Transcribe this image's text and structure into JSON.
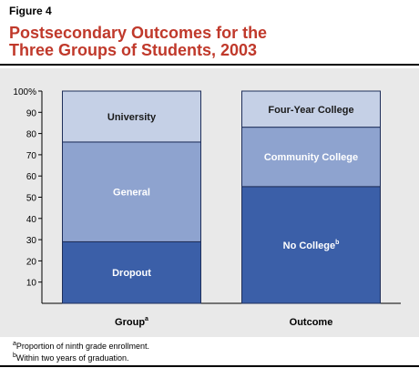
{
  "figure_label": "Figure 4",
  "title_lines": [
    "Postsecondary Outcomes for the",
    "Three Groups of Students, 2003"
  ],
  "chart_data": {
    "type": "bar",
    "stacked": true,
    "title": "Postsecondary Outcomes for the Three Groups of Students, 2003",
    "xlabel": "",
    "ylabel": "",
    "ylim": [
      0,
      100
    ],
    "yticks": [
      10,
      20,
      30,
      40,
      50,
      60,
      70,
      80,
      90,
      100
    ],
    "ytick_labels": [
      "10",
      "20",
      "30",
      "40",
      "50",
      "60",
      "70",
      "80",
      "90",
      "100%"
    ],
    "grid": false,
    "bars": [
      {
        "category": "Group",
        "footnote_mark": "a",
        "segments": [
          {
            "label": "Dropout",
            "value": 29,
            "color": "#3b5fa8",
            "text_color": "#ffffff"
          },
          {
            "label": "General",
            "value": 47,
            "color": "#8ea3cf",
            "text_color": "#ffffff"
          },
          {
            "label": "University",
            "value": 24,
            "color": "#c5d0e6",
            "text_color": "#1a1a1a"
          }
        ]
      },
      {
        "category": "Outcome",
        "footnote_mark": "",
        "segments": [
          {
            "label": "No College",
            "footnote_mark": "b",
            "value": 55,
            "color": "#3b5fa8",
            "text_color": "#ffffff"
          },
          {
            "label": "Community College",
            "value": 28,
            "color": "#8ea3cf",
            "text_color": "#ffffff"
          },
          {
            "label": "Four-Year College",
            "value": 17,
            "color": "#c5d0e6",
            "text_color": "#1a1a1a"
          }
        ]
      }
    ]
  },
  "footnotes": [
    {
      "mark": "a",
      "text": "Proportion of ninth grade enrollment."
    },
    {
      "mark": "b",
      "text": "Within two years of graduation."
    }
  ]
}
